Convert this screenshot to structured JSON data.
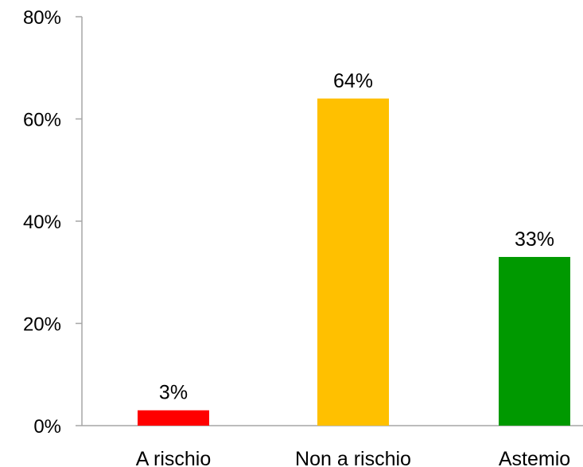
{
  "chart_data": {
    "type": "bar",
    "categories": [
      "A rischio",
      "Non a rischio",
      "Astemio"
    ],
    "values": [
      3,
      64,
      33
    ],
    "value_labels": [
      "3%",
      "64%",
      "33%"
    ],
    "colors": [
      "#ff0000",
      "#ffc000",
      "#009900"
    ],
    "ylim": [
      0,
      80
    ],
    "yticks": [
      0,
      20,
      40,
      60,
      80
    ],
    "ytick_labels": [
      "0%",
      "20%",
      "40%",
      "60%",
      "80%"
    ],
    "axis_color": "#a6a6a6",
    "grid": false,
    "legend": "none"
  }
}
